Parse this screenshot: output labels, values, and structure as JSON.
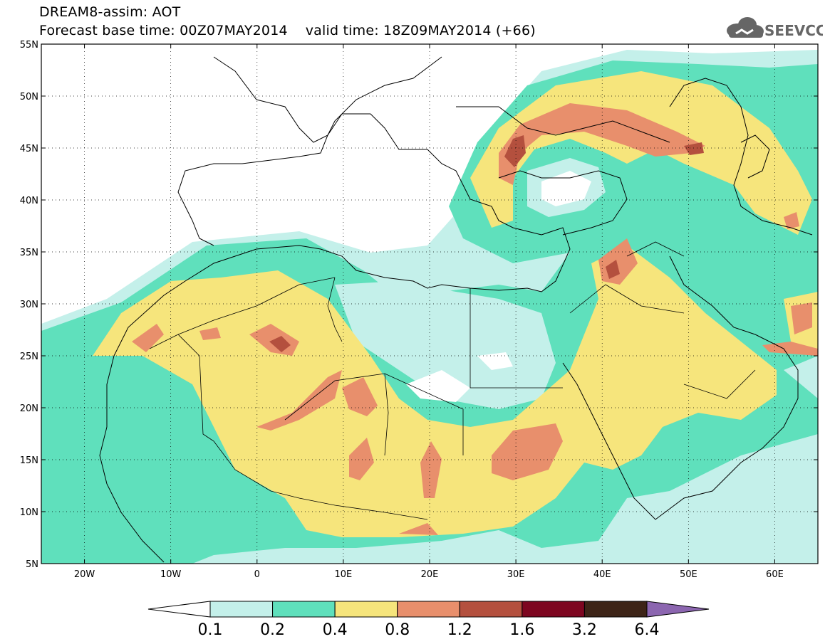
{
  "header": {
    "line1": "DREAM8-assim: AOT",
    "line2": "Forecast base time: 00Z07MAY2014    valid time: 18Z09MAY2014 (+66)"
  },
  "logo": {
    "text": "SEEVCCC",
    "icon": "cloud-icon",
    "color": "#666666"
  },
  "map": {
    "lat_labels": [
      "55N",
      "50N",
      "45N",
      "40N",
      "35N",
      "30N",
      "25N",
      "20N",
      "15N",
      "10N",
      "5N"
    ],
    "lon_labels": [
      "20W",
      "10W",
      "0",
      "10E",
      "20E",
      "30E",
      "40E",
      "50E",
      "60E"
    ],
    "lon_range": [
      -25,
      65
    ],
    "lat_range": [
      5,
      55
    ],
    "grid": "dotted"
  },
  "colorbar": {
    "labels": [
      "0.1",
      "0.2",
      "0.4",
      "0.8",
      "1.2",
      "1.6",
      "3.2",
      "6.4"
    ],
    "colors": [
      "#ffffff",
      "#c4f0ea",
      "#5fe0bc",
      "#f6e57c",
      "#e88f6c",
      "#b4503e",
      "#7d0620",
      "#3d2417",
      "#8c66b0"
    ]
  }
}
